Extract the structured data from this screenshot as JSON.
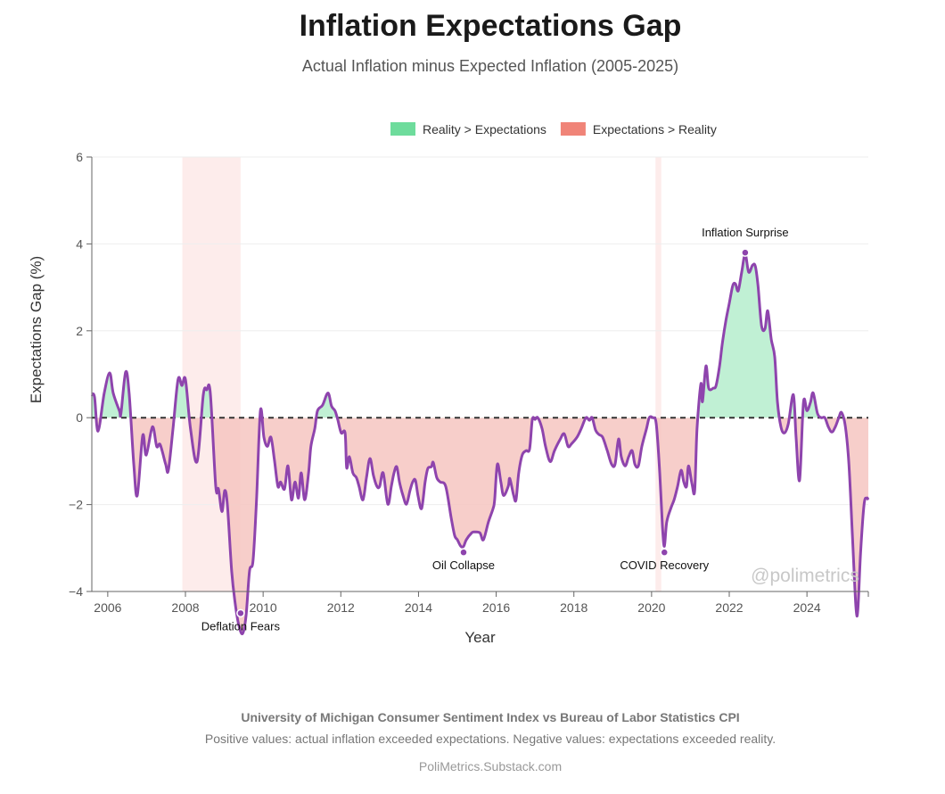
{
  "chart_data": {
    "type": "area",
    "title": "Inflation Expectations Gap",
    "subtitle": "Actual Inflation minus Expected Inflation (2005-2025)",
    "xlabel": "Year",
    "ylabel": "Expectations Gap (%)",
    "xlim": [
      2005.59,
      2025.58
    ],
    "ylim": [
      -4,
      6
    ],
    "xticks": [
      2006,
      2008,
      2010,
      2012,
      2014,
      2016,
      2018,
      2020,
      2022,
      2024
    ],
    "yticks": [
      -4,
      -2,
      0,
      2,
      4,
      6
    ],
    "ytick_labels": [
      "−4",
      "−2",
      "0",
      "2",
      "4",
      "6"
    ],
    "grid": true,
    "legend_position": "top-right",
    "legend": [
      {
        "label": "Reality > Expectations",
        "color": "#6edc9c"
      },
      {
        "label": "Expectations > Reality",
        "color": "#f08478"
      }
    ],
    "colors": {
      "line": "#8e44ad",
      "positive_fill": "#bdefd2",
      "negative_fill": "#f6c5c1",
      "shade": "#fdeceb",
      "zero_line": "#333333"
    },
    "shaded_periods": [
      [
        2007.92,
        2009.42
      ],
      [
        2020.1,
        2020.25
      ]
    ],
    "annotations": [
      {
        "label": "Deflation Fears",
        "x": 2009.42,
        "y": -4.5,
        "position": "below"
      },
      {
        "label": "Oil Collapse",
        "x": 2015.16,
        "y": -3.1,
        "position": "below"
      },
      {
        "label": "COVID Recovery",
        "x": 2020.33,
        "y": -3.1,
        "position": "below"
      },
      {
        "label": "Inflation Surprise",
        "x": 2022.41,
        "y": 3.8,
        "position": "above"
      }
    ],
    "series": [
      {
        "name": "Expectations Gap",
        "points": [
          [
            2005.59,
            0.53
          ],
          [
            2005.66,
            0.47
          ],
          [
            2005.75,
            -0.31
          ],
          [
            2005.91,
            0.57
          ],
          [
            2006.05,
            1.03
          ],
          [
            2006.14,
            0.57
          ],
          [
            2006.3,
            0.16
          ],
          [
            2006.34,
            0.1
          ],
          [
            2006.46,
            1.05
          ],
          [
            2006.55,
            0.57
          ],
          [
            2006.67,
            -1.07
          ],
          [
            2006.76,
            -1.79
          ],
          [
            2006.9,
            -0.41
          ],
          [
            2006.99,
            -0.86
          ],
          [
            2007.15,
            -0.21
          ],
          [
            2007.26,
            -0.66
          ],
          [
            2007.35,
            -0.62
          ],
          [
            2007.49,
            -1.07
          ],
          [
            2007.56,
            -1.21
          ],
          [
            2007.68,
            -0.25
          ],
          [
            2007.81,
            0.88
          ],
          [
            2007.91,
            0.74
          ],
          [
            2008.0,
            0.88
          ],
          [
            2008.13,
            -0.25
          ],
          [
            2008.3,
            -1.01
          ],
          [
            2008.46,
            0.53
          ],
          [
            2008.55,
            0.64
          ],
          [
            2008.64,
            0.57
          ],
          [
            2008.78,
            -1.58
          ],
          [
            2008.85,
            -1.64
          ],
          [
            2008.94,
            -2.16
          ],
          [
            2009.01,
            -1.68
          ],
          [
            2009.08,
            -2.01
          ],
          [
            2009.19,
            -3.53
          ],
          [
            2009.28,
            -4.27
          ],
          [
            2009.37,
            -4.76
          ],
          [
            2009.47,
            -4.97
          ],
          [
            2009.56,
            -4.56
          ],
          [
            2009.65,
            -3.53
          ],
          [
            2009.74,
            -3.29
          ],
          [
            2009.83,
            -1.89
          ],
          [
            2009.93,
            0.16
          ],
          [
            2010.02,
            -0.45
          ],
          [
            2010.11,
            -0.66
          ],
          [
            2010.2,
            -0.45
          ],
          [
            2010.29,
            -0.97
          ],
          [
            2010.38,
            -1.58
          ],
          [
            2010.45,
            -1.48
          ],
          [
            2010.55,
            -1.64
          ],
          [
            2010.64,
            -1.11
          ],
          [
            2010.73,
            -1.89
          ],
          [
            2010.82,
            -1.48
          ],
          [
            2010.91,
            -1.85
          ],
          [
            2010.98,
            -1.27
          ],
          [
            2011.07,
            -1.89
          ],
          [
            2011.17,
            -1.27
          ],
          [
            2011.23,
            -0.66
          ],
          [
            2011.33,
            -0.25
          ],
          [
            2011.4,
            0.16
          ],
          [
            2011.53,
            0.29
          ],
          [
            2011.67,
            0.57
          ],
          [
            2011.76,
            0.27
          ],
          [
            2011.85,
            0.16
          ],
          [
            2011.92,
            -0.04
          ],
          [
            2012.01,
            -0.35
          ],
          [
            2012.11,
            -0.35
          ],
          [
            2012.15,
            -1.15
          ],
          [
            2012.22,
            -0.9
          ],
          [
            2012.31,
            -1.27
          ],
          [
            2012.4,
            -1.38
          ],
          [
            2012.47,
            -1.58
          ],
          [
            2012.57,
            -1.89
          ],
          [
            2012.66,
            -1.38
          ],
          [
            2012.75,
            -0.94
          ],
          [
            2012.84,
            -1.33
          ],
          [
            2012.93,
            -1.58
          ],
          [
            2013.0,
            -1.58
          ],
          [
            2013.09,
            -1.27
          ],
          [
            2013.21,
            -1.99
          ],
          [
            2013.3,
            -1.58
          ],
          [
            2013.37,
            -1.27
          ],
          [
            2013.44,
            -1.13
          ],
          [
            2013.51,
            -1.48
          ],
          [
            2013.6,
            -1.79
          ],
          [
            2013.69,
            -1.99
          ],
          [
            2013.78,
            -1.68
          ],
          [
            2013.85,
            -1.48
          ],
          [
            2013.92,
            -1.44
          ],
          [
            2013.99,
            -1.81
          ],
          [
            2014.08,
            -2.09
          ],
          [
            2014.17,
            -1.48
          ],
          [
            2014.24,
            -1.17
          ],
          [
            2014.33,
            -1.13
          ],
          [
            2014.38,
            -1.03
          ],
          [
            2014.47,
            -1.38
          ],
          [
            2014.56,
            -1.48
          ],
          [
            2014.7,
            -1.58
          ],
          [
            2014.84,
            -2.3
          ],
          [
            2014.93,
            -2.71
          ],
          [
            2015.0,
            -2.81
          ],
          [
            2015.09,
            -2.96
          ],
          [
            2015.16,
            -2.96
          ],
          [
            2015.23,
            -2.81
          ],
          [
            2015.37,
            -2.65
          ],
          [
            2015.44,
            -2.63
          ],
          [
            2015.58,
            -2.65
          ],
          [
            2015.67,
            -2.81
          ],
          [
            2015.8,
            -2.4
          ],
          [
            2015.92,
            -2.09
          ],
          [
            2015.96,
            -1.89
          ],
          [
            2016.03,
            -1.07
          ],
          [
            2016.12,
            -1.48
          ],
          [
            2016.19,
            -1.79
          ],
          [
            2016.31,
            -1.58
          ],
          [
            2016.35,
            -1.4
          ],
          [
            2016.45,
            -1.79
          ],
          [
            2016.51,
            -1.89
          ],
          [
            2016.58,
            -1.27
          ],
          [
            2016.67,
            -0.86
          ],
          [
            2016.77,
            -0.76
          ],
          [
            2016.86,
            -0.72
          ],
          [
            2016.93,
            -0.04
          ],
          [
            2017.0,
            -0.04
          ],
          [
            2017.07,
            0.0
          ],
          [
            2017.18,
            -0.25
          ],
          [
            2017.27,
            -0.66
          ],
          [
            2017.39,
            -1.01
          ],
          [
            2017.5,
            -0.76
          ],
          [
            2017.64,
            -0.51
          ],
          [
            2017.75,
            -0.37
          ],
          [
            2017.85,
            -0.66
          ],
          [
            2017.94,
            -0.6
          ],
          [
            2018.08,
            -0.45
          ],
          [
            2018.19,
            -0.25
          ],
          [
            2018.31,
            0.0
          ],
          [
            2018.4,
            -0.06
          ],
          [
            2018.47,
            0.0
          ],
          [
            2018.56,
            -0.29
          ],
          [
            2018.65,
            -0.39
          ],
          [
            2018.74,
            -0.45
          ],
          [
            2018.86,
            -0.76
          ],
          [
            2018.97,
            -1.07
          ],
          [
            2019.06,
            -1.07
          ],
          [
            2019.15,
            -0.49
          ],
          [
            2019.22,
            -0.9
          ],
          [
            2019.32,
            -1.11
          ],
          [
            2019.41,
            -0.9
          ],
          [
            2019.5,
            -0.76
          ],
          [
            2019.57,
            -1.07
          ],
          [
            2019.66,
            -1.11
          ],
          [
            2019.75,
            -0.66
          ],
          [
            2019.87,
            -0.25
          ],
          [
            2019.94,
            0.0
          ],
          [
            2020.03,
            0.0
          ],
          [
            2020.12,
            -0.14
          ],
          [
            2020.21,
            -1.27
          ],
          [
            2020.28,
            -2.51
          ],
          [
            2020.33,
            -2.96
          ],
          [
            2020.39,
            -2.4
          ],
          [
            2020.51,
            -2.05
          ],
          [
            2020.58,
            -1.89
          ],
          [
            2020.67,
            -1.58
          ],
          [
            2020.76,
            -1.21
          ],
          [
            2020.83,
            -1.48
          ],
          [
            2020.9,
            -1.58
          ],
          [
            2020.95,
            -1.11
          ],
          [
            2021.04,
            -1.52
          ],
          [
            2021.11,
            -1.68
          ],
          [
            2021.17,
            -0.25
          ],
          [
            2021.27,
            0.78
          ],
          [
            2021.31,
            0.37
          ],
          [
            2021.4,
            1.19
          ],
          [
            2021.47,
            0.68
          ],
          [
            2021.59,
            0.68
          ],
          [
            2021.66,
            0.74
          ],
          [
            2021.75,
            1.19
          ],
          [
            2021.82,
            1.7
          ],
          [
            2021.91,
            2.22
          ],
          [
            2022.0,
            2.63
          ],
          [
            2022.09,
            3.04
          ],
          [
            2022.16,
            3.08
          ],
          [
            2022.23,
            2.92
          ],
          [
            2022.32,
            3.35
          ],
          [
            2022.41,
            3.76
          ],
          [
            2022.5,
            3.35
          ],
          [
            2022.6,
            3.51
          ],
          [
            2022.67,
            3.49
          ],
          [
            2022.74,
            3.04
          ],
          [
            2022.83,
            2.12
          ],
          [
            2022.92,
            2.05
          ],
          [
            2022.99,
            2.46
          ],
          [
            2023.08,
            1.81
          ],
          [
            2023.17,
            1.4
          ],
          [
            2023.24,
            0.37
          ],
          [
            2023.33,
            -0.21
          ],
          [
            2023.42,
            -0.35
          ],
          [
            2023.52,
            -0.14
          ],
          [
            2023.65,
            0.53
          ],
          [
            2023.72,
            -0.45
          ],
          [
            2023.81,
            -1.44
          ],
          [
            2023.91,
            0.35
          ],
          [
            2024.0,
            0.16
          ],
          [
            2024.09,
            0.35
          ],
          [
            2024.16,
            0.57
          ],
          [
            2024.27,
            0.1
          ],
          [
            2024.37,
            0.0
          ],
          [
            2024.46,
            0.0
          ],
          [
            2024.55,
            -0.21
          ],
          [
            2024.64,
            -0.33
          ],
          [
            2024.73,
            -0.21
          ],
          [
            2024.82,
            0.0
          ],
          [
            2024.89,
            0.12
          ],
          [
            2024.99,
            -0.21
          ],
          [
            2025.08,
            -1.07
          ],
          [
            2025.17,
            -2.71
          ],
          [
            2025.26,
            -4.35
          ],
          [
            2025.31,
            -4.42
          ],
          [
            2025.38,
            -3.12
          ],
          [
            2025.47,
            -2.0
          ],
          [
            2025.54,
            -1.85
          ],
          [
            2025.58,
            -1.89
          ]
        ]
      }
    ]
  },
  "footer": {
    "source": "University of Michigan Consumer Sentiment Index vs Bureau of Labor Statistics CPI",
    "note": "Positive values: actual inflation exceeded expectations. Negative values: expectations exceeded reality.",
    "site": "PoliMetrics.Substack.com"
  },
  "watermark": "@polimetrics"
}
